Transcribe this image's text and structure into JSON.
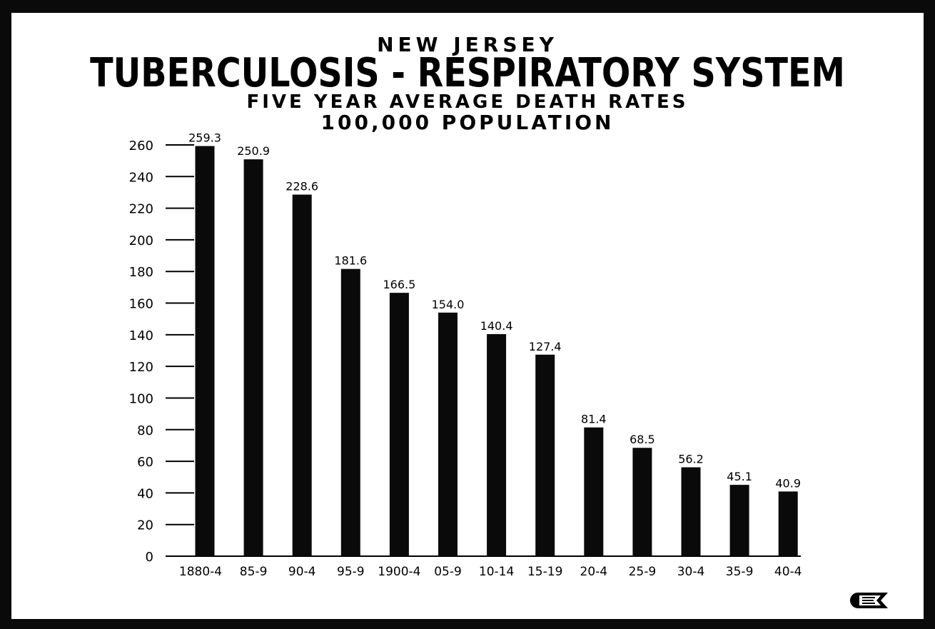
{
  "chart_data": {
    "type": "bar",
    "title_lines": [
      "NEW JERSEY",
      "TUBERCULOSIS - RESPIRATORY SYSTEM",
      "FIVE YEAR AVERAGE DEATH RATES",
      "100,000 POPULATION"
    ],
    "categories": [
      "1880-4",
      "85-9",
      "90-4",
      "95-9",
      "1900-4",
      "05-9",
      "10-14",
      "15-19",
      "20-4",
      "25-9",
      "30-4",
      "35-9",
      "40-4"
    ],
    "values": [
      259.3,
      250.9,
      228.6,
      181.6,
      166.5,
      154.0,
      140.4,
      127.4,
      81.4,
      68.5,
      56.2,
      45.1,
      40.9
    ],
    "value_labels": [
      "259.3",
      "250.9",
      "228.6",
      "181.6",
      "166.5",
      "154.0",
      "140.4",
      "127.4",
      "81.4",
      "68.5",
      "56.2",
      "45.1",
      "40.9"
    ],
    "y_ticks": [
      0,
      20,
      40,
      60,
      80,
      100,
      120,
      140,
      160,
      180,
      200,
      220,
      240,
      260
    ],
    "y_tick_labels": [
      "0",
      "20",
      "40",
      "60",
      "80",
      "100",
      "120",
      "140",
      "160",
      "180",
      "200",
      "220",
      "240",
      "260"
    ],
    "ylim": [
      0,
      260
    ],
    "grid": false,
    "legend": "none",
    "bar_color": "#0a0a0a"
  },
  "colors": {
    "frame": "#0a0a0a",
    "board": "#ffffff",
    "ink": "#000000"
  },
  "logo_icon": "health-education-badge-icon"
}
